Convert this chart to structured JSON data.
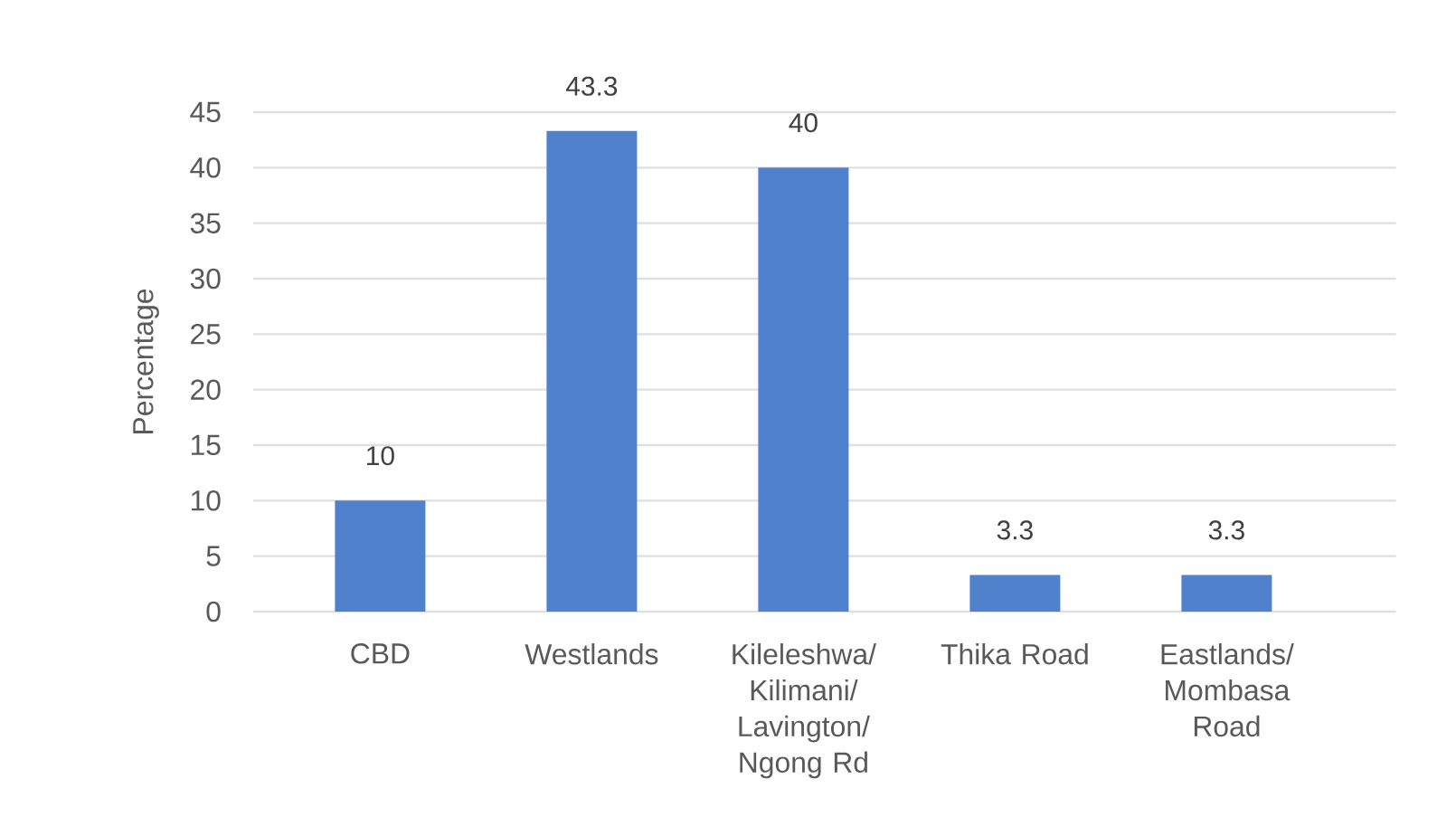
{
  "chart_data": {
    "type": "bar",
    "ylabel": "Percentage",
    "categories": [
      "CBD",
      "Westlands",
      "Kileleshwa/ Kilimani/ Lavington/ Ngong Rd",
      "Thika Road",
      "Eastlands/ Mombasa Road"
    ],
    "values": [
      10,
      43.3,
      40,
      3.3,
      3.3
    ],
    "color": "#4f81cd",
    "ylim": [
      0,
      45
    ],
    "yticks": [
      0,
      5,
      10,
      15,
      20,
      25,
      30,
      35,
      40,
      45
    ],
    "grid": "y",
    "data_labels": true
  }
}
